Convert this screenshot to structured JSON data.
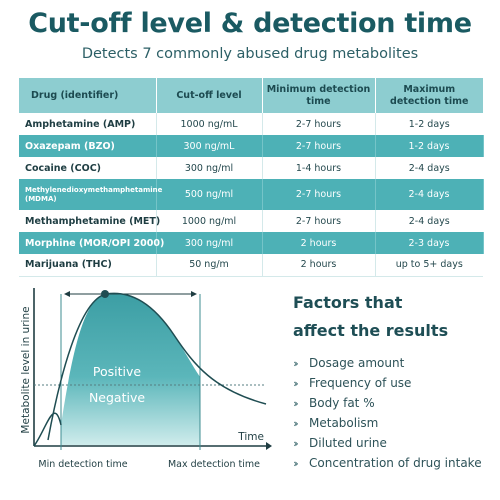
{
  "header": {
    "title": "Cut-off level & detection time",
    "subtitle": "Detects 7 commonly abused drug metabolites"
  },
  "table": {
    "headers": [
      "Drug (identifier)",
      "Cut-off level",
      "Minimum detection time",
      "Maximum detection time"
    ],
    "rows": [
      {
        "drug": "Amphetamine (AMP)",
        "cutoff": "1000 ng/mL",
        "min": "2-7 hours",
        "max": "1-2 days"
      },
      {
        "drug": "Oxazepam (BZO)",
        "cutoff": "300 ng/mL",
        "min": "2-7 hours",
        "max": "1-2 days"
      },
      {
        "drug": "Cocaine (COC)",
        "cutoff": "300 ng/ml",
        "min": "1-4 hours",
        "max": "2-4 days"
      },
      {
        "drug": "Methylenedioxymethamphetamine (MDMA)",
        "cutoff": "500 ng/ml",
        "min": "2-7 hours",
        "max": "2-4 days"
      },
      {
        "drug": "Methamphetamine (MET)",
        "cutoff": "1000 ng/ml",
        "min": "2-7 hours",
        "max": "2-4 days"
      },
      {
        "drug": "Morphine (MOR/OPI 2000)",
        "cutoff": "300 ng/ml",
        "min": "2 hours",
        "max": "2-3 days"
      },
      {
        "drug": "Marijuana (THC)",
        "cutoff": "50 ng/m",
        "min": "2 hours",
        "max": "up to 5+ days"
      }
    ]
  },
  "graph": {
    "ylabel": "Metabolite level in urine",
    "xlabel": "Time",
    "positive_label": "Positive",
    "negative_label": "Negative",
    "min_label": "Min detection time",
    "max_label": "Max detection time"
  },
  "factors": {
    "title_line1": "Factors that",
    "title_line2": "affect the results",
    "items": [
      "Dosage amount",
      "Frequency of use",
      "Body fat %",
      "Metabolism",
      "Diluted urine",
      "Concentration of drug intake"
    ]
  },
  "colors": {
    "title": "#1a5a62",
    "header_row": "#8dcdd0",
    "accent_row": "#4db1b6",
    "curve_fill": "#4aa9ae"
  }
}
